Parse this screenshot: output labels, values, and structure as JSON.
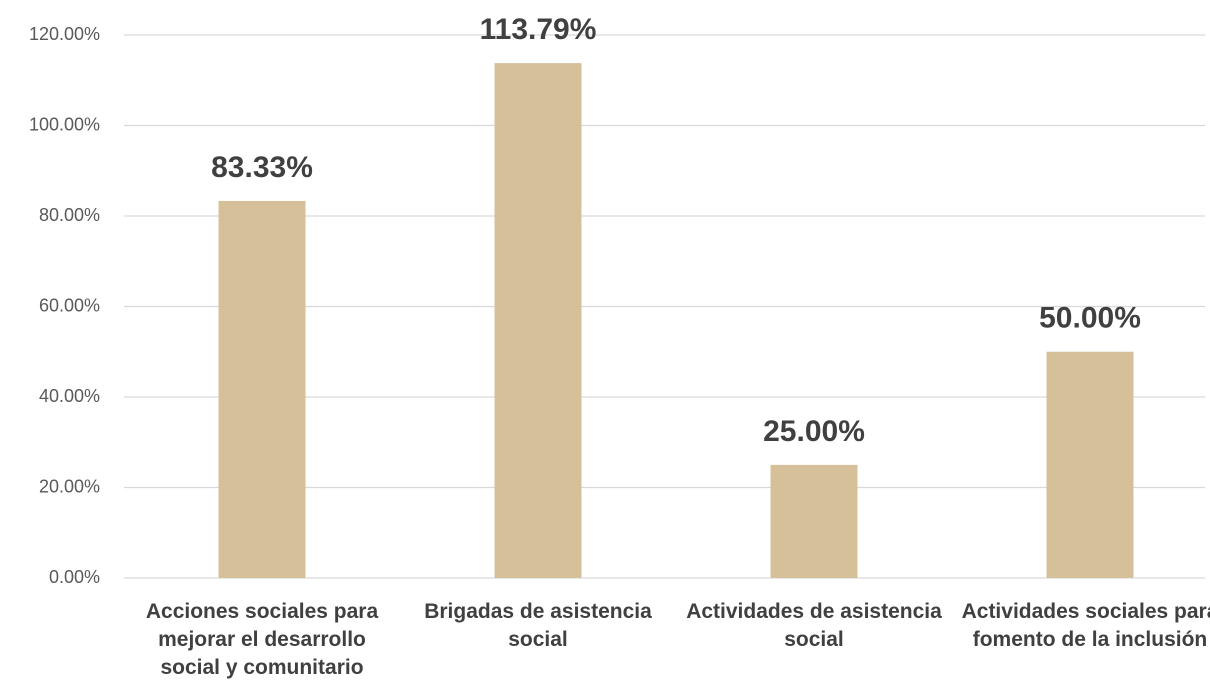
{
  "chart_data": {
    "type": "bar",
    "categories": [
      "Acciones sociales para mejorar el desarrollo social y comunitario",
      "Brigadas de asistencia social",
      "Actividades de asistencia social",
      "Actividades sociales para fomento de la inclusión"
    ],
    "values": [
      83.33,
      113.79,
      25,
      50
    ],
    "value_labels": [
      "83.33%",
      "113.79%",
      "25.00%",
      "50.00%"
    ],
    "color": "#d5c09a",
    "ylim": [
      0,
      120
    ],
    "yticks": [
      {
        "value": 0,
        "label": "0.00%"
      },
      {
        "value": 20,
        "label": "20.00%"
      },
      {
        "value": 40,
        "label": "40.00%"
      },
      {
        "value": 60,
        "label": "60.00%"
      },
      {
        "value": 80,
        "label": "80.00%"
      },
      {
        "value": 100,
        "label": "100.00%"
      },
      {
        "value": 120,
        "label": "120.00%"
      }
    ],
    "grid": true
  }
}
